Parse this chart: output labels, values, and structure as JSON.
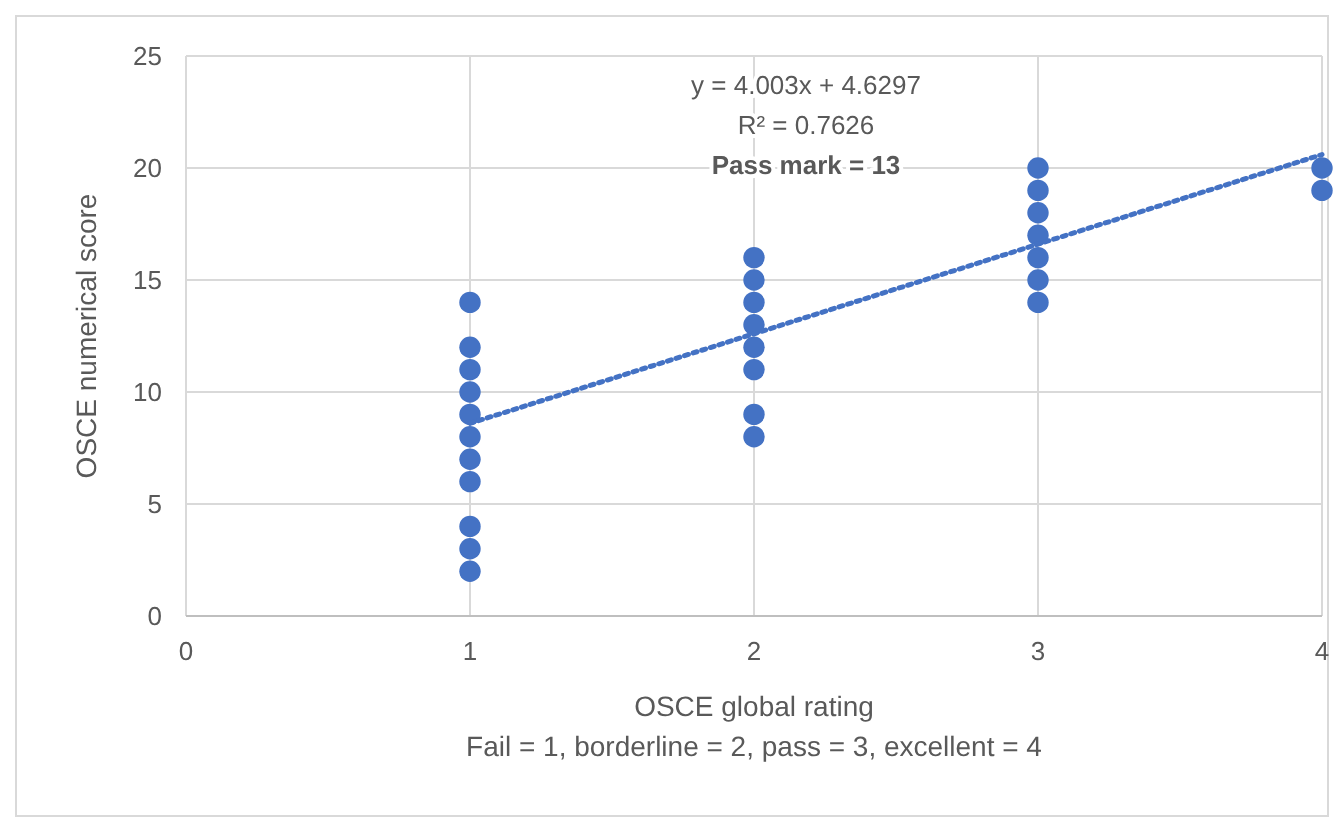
{
  "chart_data": {
    "type": "scatter",
    "xlabel": "OSCE global rating\nFail = 1, borderline = 2, pass = 3, excellent = 4",
    "ylabel": "OSCE numerical score",
    "annotations": [
      "y = 4.003x + 4.6297",
      "R² = 0.7626",
      "Pass mark = 13"
    ],
    "xlim": [
      0,
      4
    ],
    "xticks": [
      0,
      1,
      2,
      3,
      4
    ],
    "ylim": [
      0,
      25
    ],
    "yticks": [
      0,
      5,
      10,
      15,
      20,
      25
    ],
    "grid": true,
    "marker": "circle",
    "series": [
      {
        "color": "#4472c4",
        "x": [
          1,
          1,
          1,
          1,
          1,
          1,
          1,
          1,
          1,
          1,
          1,
          2,
          2,
          2,
          2,
          2,
          2,
          2,
          2,
          3,
          3,
          3,
          3,
          3,
          3,
          3,
          4,
          4
        ],
        "values": [
          14,
          12,
          11,
          10,
          9,
          8,
          7,
          6,
          4,
          3,
          2,
          16,
          15,
          14,
          13,
          12,
          11,
          9,
          8,
          20,
          19,
          18,
          17,
          16,
          15,
          14,
          20,
          19
        ]
      },
      {
        "type": "line",
        "color": "#4472c4",
        "line_style": "dotted",
        "marker": "none",
        "x": [
          1,
          4
        ],
        "values": [
          8.6,
          20.6
        ]
      }
    ]
  }
}
